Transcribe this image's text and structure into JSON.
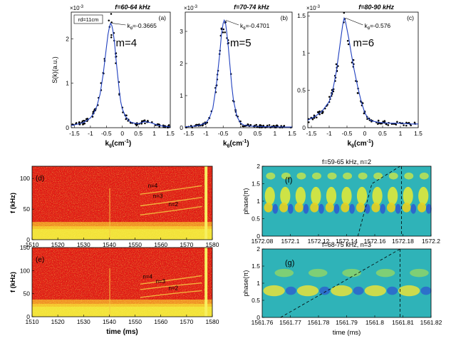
{
  "chart_data": [
    {
      "id": "a",
      "type": "scatter",
      "title": "f=60-64 kHz",
      "panel_label": "(a)",
      "exponent_label": "×10",
      "exponent_power": "-3",
      "ylabel": "S(k)(a.u.)",
      "xlabel_main": "k",
      "xlabel_sub": "θ",
      "xlabel_unit": "(cm",
      "xlabel_unit_pow": "-1",
      "xlabel_unit_close": ")",
      "xlim": [
        -1.6,
        1.5
      ],
      "ylim": [
        0,
        2.6
      ],
      "xticks": [
        "-1.5",
        "-1",
        "-0.5",
        "0",
        "0.5",
        "1",
        "1.5"
      ],
      "yticks": [
        "0",
        "1",
        "2"
      ],
      "ytick_values": [
        0,
        1,
        2
      ],
      "xtick_values": [
        -1.5,
        -1,
        -0.5,
        0,
        0.5,
        1,
        1.5
      ],
      "box_label": "rd=11cm",
      "mode_label": "m=4",
      "peak_label_main": "k",
      "peak_label_sub": "θ",
      "peak_label_value": "=-0.3665",
      "peak": [
        -0.3665,
        2.35
      ],
      "curve_x": [
        -1.6,
        -1.4,
        -1.2,
        -1.0,
        -0.9,
        -0.8,
        -0.7,
        -0.6,
        -0.5,
        -0.45,
        -0.4,
        -0.37,
        -0.33,
        -0.3,
        -0.25,
        -0.2,
        -0.15,
        -0.1,
        -0.05,
        0.0,
        0.1,
        0.2,
        0.3,
        0.5,
        0.7,
        0.9,
        1.1,
        1.3,
        1.5
      ],
      "curve_y": [
        0.05,
        0.08,
        0.12,
        0.22,
        0.32,
        0.48,
        0.75,
        1.2,
        1.8,
        2.1,
        2.28,
        2.35,
        2.3,
        2.2,
        1.95,
        1.55,
        1.2,
        0.85,
        0.58,
        0.42,
        0.25,
        0.16,
        0.11,
        0.09,
        0.14,
        0.11,
        0.06,
        0.03,
        0.02
      ]
    },
    {
      "id": "b",
      "type": "scatter",
      "title": "f=70-74 kHz",
      "panel_label": "(b)",
      "exponent_label": "×10",
      "exponent_power": "-3",
      "xlabel_main": "k",
      "xlabel_sub": "θ",
      "xlabel_unit": "(cm",
      "xlabel_unit_pow": "-1",
      "xlabel_unit_close": ")",
      "xlim": [
        -1.6,
        1.5
      ],
      "ylim": [
        0,
        3.6
      ],
      "xticks": [
        "-1.5",
        "-1",
        "-0.5",
        "0",
        "0.5",
        "1",
        "1.5"
      ],
      "yticks": [
        "0",
        "1",
        "2",
        "3"
      ],
      "ytick_values": [
        0,
        1,
        2,
        3
      ],
      "xtick_values": [
        -1.5,
        -1,
        -0.5,
        0,
        0.5,
        1,
        1.5
      ],
      "mode_label": "m=5",
      "peak_label_main": "k",
      "peak_label_sub": "θ",
      "peak_label_value": "=-0.4701",
      "peak": [
        -0.4701,
        3.35
      ],
      "curve_x": [
        -1.6,
        -1.4,
        -1.2,
        -1.0,
        -0.9,
        -0.8,
        -0.7,
        -0.6,
        -0.55,
        -0.5,
        -0.47,
        -0.43,
        -0.4,
        -0.35,
        -0.3,
        -0.25,
        -0.2,
        -0.1,
        0.0,
        0.1,
        0.3,
        0.5,
        0.7,
        1.0,
        1.3,
        1.5
      ],
      "curve_y": [
        0.03,
        0.04,
        0.07,
        0.15,
        0.3,
        0.6,
        1.3,
        2.3,
        2.9,
        3.25,
        3.35,
        3.25,
        3.0,
        2.5,
        1.9,
        1.3,
        0.85,
        0.35,
        0.15,
        0.08,
        0.05,
        0.04,
        0.03,
        0.03,
        0.02,
        0.02
      ]
    },
    {
      "id": "c",
      "type": "scatter",
      "title": "f=80-90 kHz",
      "panel_label": "(c)",
      "exponent_label": "×10",
      "exponent_power": "-3",
      "xlabel_main": "k",
      "xlabel_sub": "θ",
      "xlabel_unit": "(cm",
      "xlabel_unit_pow": "-1",
      "xlabel_unit_close": ")",
      "xlim": [
        -1.6,
        1.5
      ],
      "ylim": [
        0,
        1.55
      ],
      "xticks": [
        "-1.5",
        "-1",
        "-0.5",
        "0",
        "0.5",
        "1",
        "1.5"
      ],
      "yticks": [
        "0",
        "0.5",
        "1",
        "1.5"
      ],
      "ytick_values": [
        0,
        0.5,
        1,
        1.5
      ],
      "xtick_values": [
        -1.5,
        -1,
        -0.5,
        0,
        0.5,
        1,
        1.5
      ],
      "mode_label": "m=6",
      "peak_label_main": "k",
      "peak_label_sub": "θ",
      "peak_label_value": "=-0.576",
      "peak": [
        -0.576,
        1.47
      ],
      "curve_x": [
        -1.6,
        -1.4,
        -1.2,
        -1.0,
        -0.9,
        -0.8,
        -0.7,
        -0.62,
        -0.58,
        -0.54,
        -0.5,
        -0.45,
        -0.4,
        -0.3,
        -0.2,
        -0.1,
        0.0,
        0.1,
        0.2,
        0.4,
        0.7,
        1.0,
        1.3,
        1.5
      ],
      "curve_y": [
        0.1,
        0.15,
        0.22,
        0.35,
        0.5,
        0.75,
        1.1,
        1.38,
        1.47,
        1.42,
        1.32,
        1.2,
        1.05,
        0.78,
        0.55,
        0.35,
        0.2,
        0.12,
        0.09,
        0.07,
        0.06,
        0.06,
        0.05,
        0.05
      ]
    },
    {
      "id": "d",
      "type": "heatmap",
      "panel_label": "(d)",
      "ylabel": "f (kHz)",
      "xlim": [
        1510,
        1580
      ],
      "ylim": [
        0,
        120
      ],
      "xticks": [
        "1510",
        "1520",
        "1530",
        "1540",
        "1550",
        "1560",
        "1570",
        "1580"
      ],
      "xtick_values": [
        1510,
        1520,
        1530,
        1540,
        1550,
        1560,
        1570,
        1580
      ],
      "yticks": [
        "0",
        "50",
        "100"
      ],
      "ytick_values": [
        0,
        50,
        100
      ],
      "annotations": [
        {
          "text": "n=4",
          "x": 1555,
          "y": 85
        },
        {
          "text": "n=3",
          "x": 1557,
          "y": 68
        },
        {
          "text": "n=2",
          "x": 1563,
          "y": 55
        }
      ]
    },
    {
      "id": "e",
      "type": "heatmap",
      "panel_label": "(e)",
      "ylabel": "f (kHz)",
      "xlabel": "time (ms)",
      "xlim": [
        1510,
        1580
      ],
      "ylim": [
        0,
        150
      ],
      "xticks": [
        "1510",
        "1520",
        "1530",
        "1540",
        "1550",
        "1560",
        "1570",
        "1580"
      ],
      "xtick_values": [
        1510,
        1520,
        1530,
        1540,
        1550,
        1560,
        1570,
        1580
      ],
      "yticks": [
        "0",
        "50",
        "100",
        "150"
      ],
      "ytick_values": [
        0,
        50,
        100,
        150
      ],
      "annotations": [
        {
          "text": "n=4",
          "x": 1553,
          "y": 83
        },
        {
          "text": "n=3",
          "x": 1558,
          "y": 73
        },
        {
          "text": "n=2",
          "x": 1563,
          "y": 58
        }
      ]
    },
    {
      "id": "f",
      "type": "heatmap",
      "title": "f=59-65 kHz, n=2",
      "panel_label": "(f)",
      "ylabel": "phase(π)",
      "xlim": [
        1572.08,
        1572.2
      ],
      "ylim": [
        0,
        2
      ],
      "xticks": [
        "1572.08",
        "1572.1",
        "1572.12",
        "1572.14",
        "1572.16",
        "1572.18",
        "1572.2"
      ],
      "xtick_values": [
        1572.08,
        1572.1,
        1572.12,
        1572.14,
        1572.16,
        1572.18,
        1572.2
      ],
      "yticks": [
        "0",
        "0.5",
        "1",
        "1.5",
        "2"
      ],
      "ytick_values": [
        0,
        0.5,
        1,
        1.5,
        2
      ],
      "dashed_line": [
        [
          1572.148,
          0.0
        ],
        [
          1572.158,
          1.5
        ],
        [
          1572.178,
          2.0
        ]
      ],
      "vertical_dashed_x": 1572.179
    },
    {
      "id": "g",
      "type": "heatmap",
      "title": "f=68-75 kHz, n=3",
      "panel_label": "(g)",
      "ylabel": "phase(π)",
      "xlabel": "time (ms)",
      "xlim": [
        1561.76,
        1561.82
      ],
      "ylim": [
        0,
        2
      ],
      "xticks": [
        "1561.76",
        "1561.77",
        "1561.78",
        "1561.79",
        "1561.8",
        "1561.81",
        "1561.82"
      ],
      "xtick_values": [
        1561.76,
        1561.77,
        1561.78,
        1561.79,
        1561.8,
        1561.81,
        1561.82
      ],
      "yticks": [
        "0",
        "0.5",
        "1",
        "1.5",
        "2"
      ],
      "ytick_values": [
        0,
        0.5,
        1,
        1.5,
        2
      ],
      "dashed_line": [
        [
          1561.7665,
          0.0
        ],
        [
          1561.809,
          2.0
        ]
      ],
      "vertical_dashed_x": 1561.809
    }
  ]
}
